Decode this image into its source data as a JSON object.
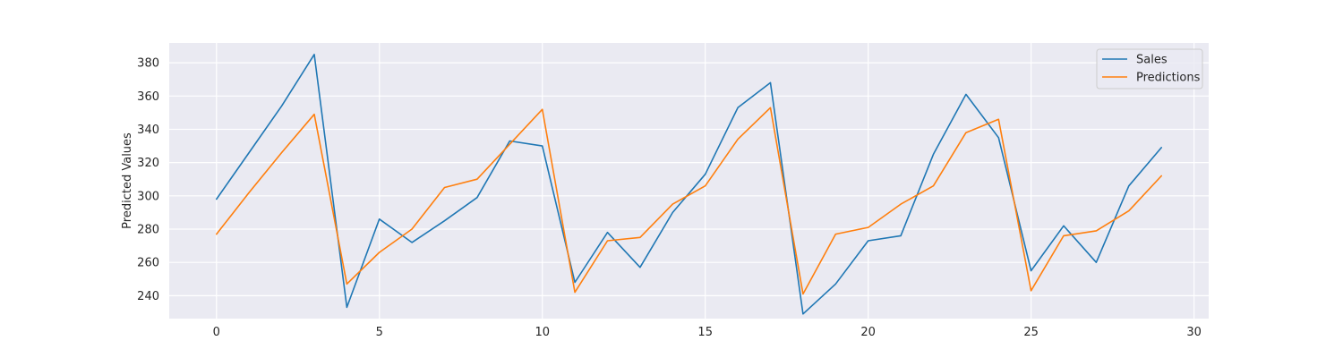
{
  "chart_data": {
    "type": "line",
    "title": "",
    "xlabel": "",
    "ylabel": "Predicted Values",
    "xlim": [
      -1.45,
      30.45
    ],
    "ylim": [
      226.2,
      391.9
    ],
    "xticks": [
      0,
      5,
      10,
      15,
      20,
      25,
      30
    ],
    "yticks": [
      240,
      260,
      280,
      300,
      320,
      340,
      360,
      380
    ],
    "grid": true,
    "legend_position": "top-right",
    "x": [
      0,
      1,
      2,
      3,
      4,
      5,
      6,
      7,
      8,
      9,
      10,
      11,
      12,
      13,
      14,
      15,
      16,
      17,
      18,
      19,
      20,
      21,
      22,
      23,
      24,
      25,
      26,
      27,
      28,
      29
    ],
    "series": [
      {
        "name": "Sales",
        "color": "#1f77b4",
        "values": [
          298,
          326,
          354,
          385,
          233,
          286,
          272,
          285,
          299,
          333,
          330,
          248,
          278,
          257,
          290,
          313,
          353,
          368,
          229,
          247,
          273,
          276,
          325,
          361,
          335,
          255,
          282,
          260,
          306,
          329
        ]
      },
      {
        "name": "Predictions",
        "color": "#ff7f0e",
        "values": [
          277,
          302,
          326,
          349,
          247,
          266,
          280,
          305,
          310,
          331,
          352,
          242,
          273,
          275,
          295,
          306,
          334,
          353,
          241,
          277,
          281,
          295,
          306,
          338,
          346,
          243,
          276,
          279,
          291,
          312
        ]
      }
    ]
  }
}
